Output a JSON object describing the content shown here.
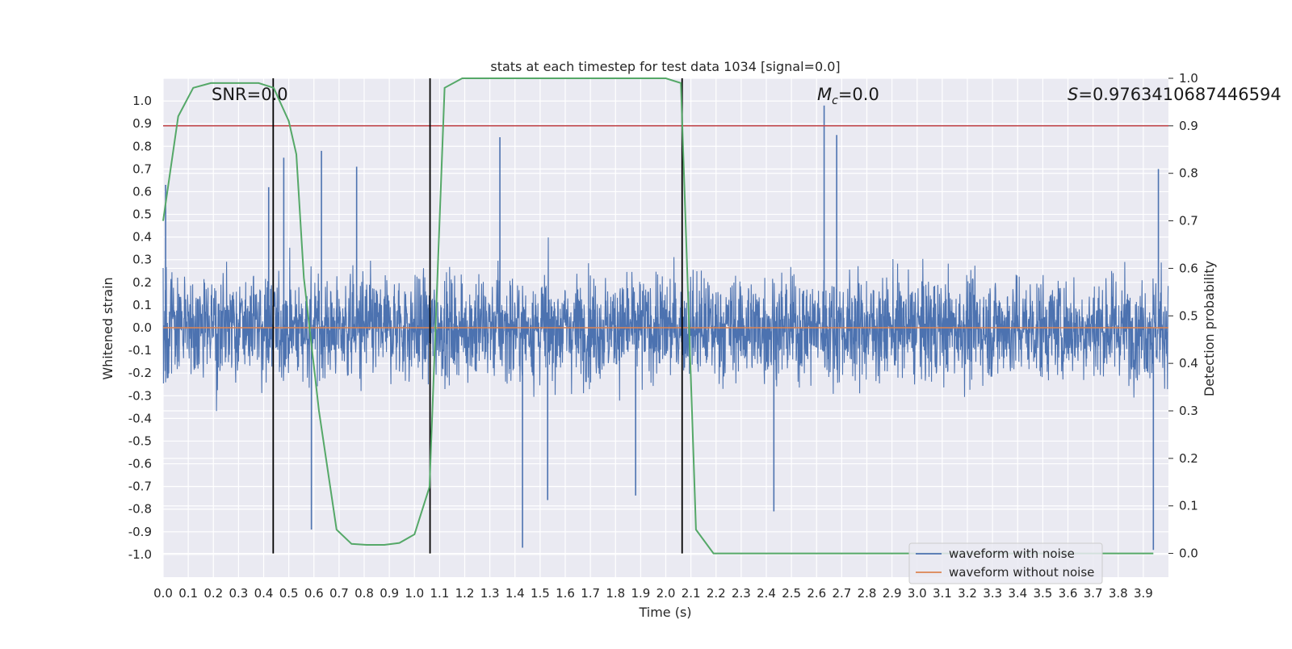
{
  "chart_data": {
    "type": "line",
    "title": "stats at each timestep for test data 1034 [signal=0.0]",
    "xlabel": "Time (s)",
    "ylabel": "Whitened strain",
    "y2label": "Detection probability",
    "xlim": [
      0.0,
      4.0
    ],
    "ylim": [
      -1.1,
      1.1
    ],
    "y2lim": [
      -0.05,
      1.0
    ],
    "x_ticks": [
      "0.0",
      "0.1",
      "0.2",
      "0.3",
      "0.4",
      "0.5",
      "0.6",
      "0.7",
      "0.8",
      "0.9",
      "1.0",
      "1.1",
      "1.2",
      "1.3",
      "1.4",
      "1.5",
      "1.6",
      "1.7",
      "1.8",
      "1.9",
      "2.0",
      "2.1",
      "2.2",
      "2.3",
      "2.4",
      "2.5",
      "2.6",
      "2.7",
      "2.8",
      "2.9",
      "3.0",
      "3.1",
      "3.2",
      "3.3",
      "3.4",
      "3.5",
      "3.6",
      "3.7",
      "3.8",
      "3.9"
    ],
    "y_ticks": [
      "1.0",
      "0.9",
      "0.8",
      "0.7",
      "0.6",
      "0.5",
      "0.4",
      "0.3",
      "0.2",
      "0.1",
      "0.0",
      "-0.1",
      "-0.2",
      "-0.3",
      "-0.4",
      "-0.5",
      "-0.6",
      "-0.7",
      "-0.8",
      "-0.9",
      "-1.0"
    ],
    "y2_ticks": [
      "1.0",
      "0.9",
      "0.8",
      "0.7",
      "0.6",
      "0.5",
      "0.4",
      "0.3",
      "0.2",
      "0.1",
      "0.0"
    ],
    "annotations": {
      "snr": "SNR=0.0",
      "mc_symbol": "M",
      "mc_sub": "c",
      "mc_value": "=0.0",
      "s_symbol": "S",
      "s_value": "=0.9763410687446594"
    },
    "threshold_line": {
      "y_right": 0.9,
      "color": "#c44e52"
    },
    "vertical_markers_x": [
      0.438,
      1.062,
      2.065
    ],
    "series": [
      {
        "name": "waveform with noise",
        "color": "#4c72b0",
        "description_note": "dense noisy trace, amplitude mostly within ±0.5",
        "spikes": [
          [
            0.01,
            0.63
          ],
          [
            0.42,
            0.62
          ],
          [
            0.48,
            0.75
          ],
          [
            0.59,
            -0.89
          ],
          [
            0.63,
            0.78
          ],
          [
            0.77,
            0.71
          ],
          [
            1.34,
            0.84
          ],
          [
            1.43,
            -0.97
          ],
          [
            1.53,
            -0.76
          ],
          [
            1.88,
            -0.74
          ],
          [
            2.63,
            0.98
          ],
          [
            2.68,
            0.85
          ],
          [
            2.43,
            -0.81
          ],
          [
            3.94,
            -0.98
          ],
          [
            3.96,
            0.7
          ]
        ]
      },
      {
        "name": "waveform without noise",
        "color": "#dd8452",
        "values_note": "flat at 0.0"
      },
      {
        "name": "",
        "color": "#55a868",
        "axis": "right",
        "x": [
          0.0,
          0.06,
          0.12,
          0.19,
          0.25,
          0.31,
          0.38,
          0.44,
          0.5,
          0.53,
          0.56,
          0.62,
          0.69,
          0.75,
          0.81,
          0.88,
          0.94,
          1.0,
          1.06,
          1.12,
          1.19,
          1.25,
          1.5,
          1.75,
          2.0,
          2.06,
          2.12,
          2.19,
          2.25,
          2.5,
          3.0,
          3.5,
          3.94
        ],
        "values": [
          0.7,
          0.92,
          0.98,
          0.99,
          0.99,
          0.99,
          0.99,
          0.98,
          0.91,
          0.84,
          0.58,
          0.3,
          0.05,
          0.02,
          0.018,
          0.018,
          0.022,
          0.04,
          0.14,
          0.98,
          1.0,
          1.0,
          1.0,
          1.0,
          1.0,
          0.99,
          0.05,
          0.0,
          0.0,
          0.0,
          0.0,
          0.0,
          0.0
        ]
      }
    ],
    "legend": {
      "position": "lower right",
      "entries": [
        {
          "label": "waveform with noise",
          "color": "#4c72b0"
        },
        {
          "label": "waveform without noise",
          "color": "#dd8452"
        }
      ]
    },
    "grid": true,
    "background": "#eaeaf2"
  }
}
